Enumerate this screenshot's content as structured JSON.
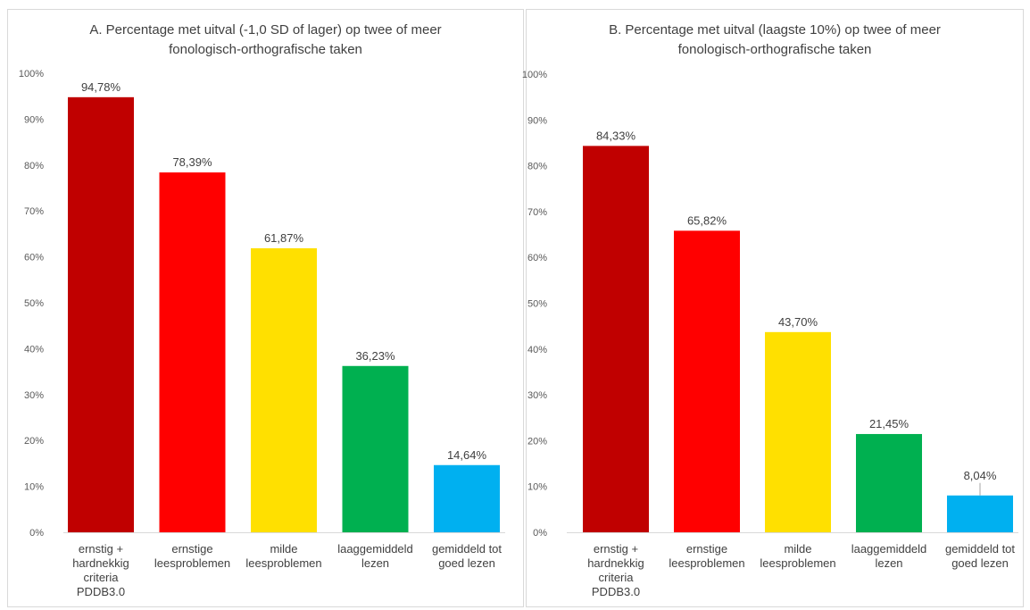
{
  "chart_data": [
    {
      "type": "bar",
      "title_lines": [
        "A. Percentage met uitval (-1,0 SD of lager) op twee of meer",
        "fonologisch-orthografische taken"
      ],
      "categories": [
        [
          "ernstig +",
          "hardnekkig",
          "criteria",
          "PDDB3.0"
        ],
        [
          "ernstige",
          "leesproblemen"
        ],
        [
          "milde",
          "leesproblemen"
        ],
        [
          "laaggemiddeld",
          "lezen"
        ],
        [
          "gemiddeld tot",
          "goed lezen"
        ]
      ],
      "values": [
        94.78,
        78.39,
        61.87,
        36.23,
        14.64
      ],
      "value_labels": [
        "94,78%",
        "78,39%",
        "61,87%",
        "36,23%",
        "14,64%"
      ],
      "colors": [
        "#c00000",
        "#ff0000",
        "#ffe000",
        "#00b050",
        "#00b0f0"
      ],
      "ylim": [
        0,
        100
      ],
      "yticks": [
        "0%",
        "10%",
        "20%",
        "30%",
        "40%",
        "50%",
        "60%",
        "70%",
        "80%",
        "90%",
        "100%"
      ],
      "grid": false
    },
    {
      "type": "bar",
      "title_lines": [
        "B. Percentage met uitval (laagste 10%) op twee of meer",
        "fonologisch-orthografische taken"
      ],
      "categories": [
        [
          "ernstig +",
          "hardnekkig",
          "criteria",
          "PDDB3.0"
        ],
        [
          "ernstige",
          "leesproblemen"
        ],
        [
          "milde",
          "leesproblemen"
        ],
        [
          "laaggemiddeld",
          "lezen"
        ],
        [
          "gemiddeld tot",
          "goed lezen"
        ]
      ],
      "values": [
        84.33,
        65.82,
        43.7,
        21.45,
        8.04
      ],
      "value_labels": [
        "84,33%",
        "65,82%",
        "43,70%",
        "21,45%",
        "8,04%"
      ],
      "colors": [
        "#c00000",
        "#ff0000",
        "#ffe000",
        "#00b050",
        "#00b0f0"
      ],
      "ylim": [
        0,
        100
      ],
      "yticks": [
        "0%",
        "10%",
        "20%",
        "30%",
        "40%",
        "50%",
        "60%",
        "70%",
        "80%",
        "90%",
        "100%"
      ],
      "grid": false
    }
  ]
}
